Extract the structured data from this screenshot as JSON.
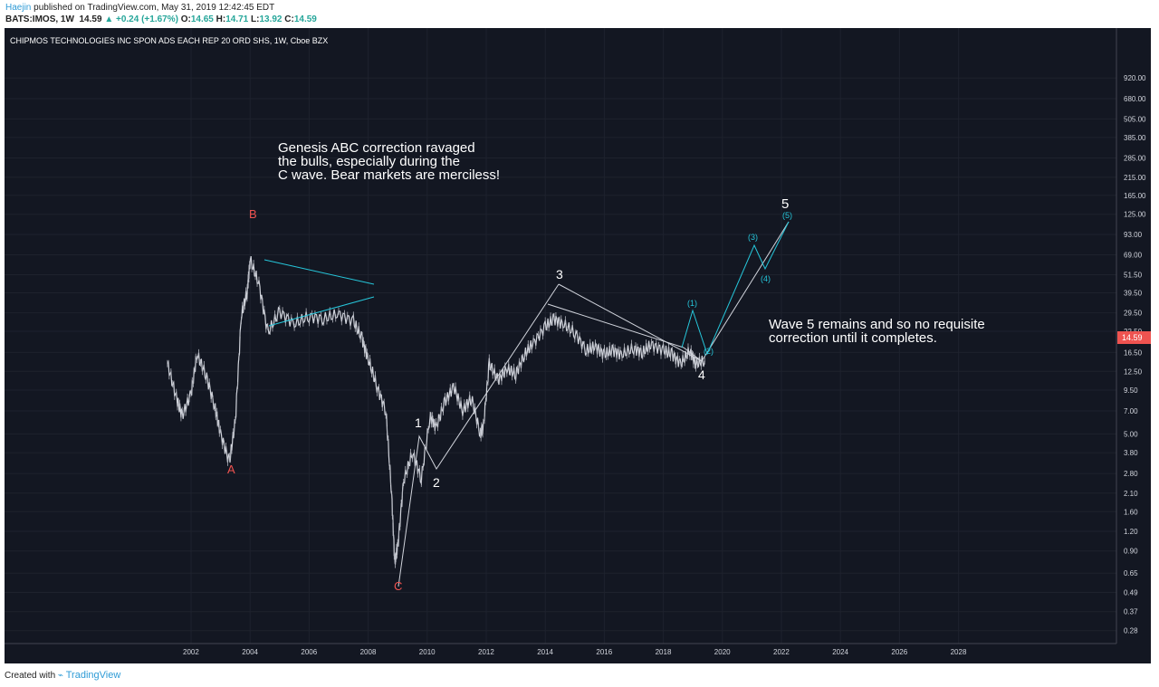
{
  "header": {
    "author": "Haejin",
    "published": "published on TradingView.com, May 31, 2019 12:42:45 EDT",
    "symbol": "BATS:IMOS, 1W",
    "price": "14.59",
    "change": "+0.24 (+1.67%)",
    "open_label": "O:",
    "open": "14.65",
    "high_label": "H:",
    "high": "14.71",
    "low_label": "L:",
    "low": "13.92",
    "close_label": "C:",
    "close": "14.59"
  },
  "chart_data": {
    "type": "line",
    "title": "CHIPMOS TECHNOLOGIES INC SPON ADS EACH REP 20 ORD SHS, 1W, Cboe BZX",
    "scale": "log",
    "grid": true,
    "y_ticks": [
      "920.00",
      "680.00",
      "505.00",
      "385.00",
      "285.00",
      "215.00",
      "165.00",
      "125.00",
      "93.00",
      "69.00",
      "51.50",
      "39.50",
      "29.50",
      "22.50",
      "16.50",
      "12.50",
      "9.50",
      "7.00",
      "5.00",
      "3.80",
      "2.80",
      "2.10",
      "1.60",
      "1.20",
      "0.90",
      "0.65",
      "0.49",
      "0.37",
      "0.28"
    ],
    "x_ticks": [
      "2002",
      "2004",
      "2006",
      "2008",
      "2010",
      "2012",
      "2014",
      "2016",
      "2018",
      "2020",
      "2022",
      "2024",
      "2026",
      "2028"
    ],
    "last_price": "14.59",
    "series": [
      {
        "x": [
          2001.2,
          2001.5,
          2001.7,
          2002.0,
          2002.2,
          2002.5,
          2002.8,
          2003.0,
          2003.3,
          2003.5,
          2003.7,
          2003.9,
          2004.0,
          2004.3,
          2004.6,
          2005.0,
          2005.5,
          2006.0,
          2006.5,
          2007.0,
          2007.5,
          2007.8,
          2008.0,
          2008.3,
          2008.6,
          2008.8,
          2008.9,
          2009.0,
          2009.2,
          2009.5,
          2009.8,
          2010.1,
          2010.3,
          2010.6,
          2010.9,
          2011.2,
          2011.5,
          2011.8,
          2011.9,
          2012.1,
          2012.4,
          2012.7,
          2013.0,
          2013.3,
          2013.6,
          2014.0,
          2014.3,
          2014.6,
          2015.0,
          2015.4,
          2015.7,
          2016.0,
          2016.3,
          2016.6,
          2017.0,
          2017.3,
          2017.6,
          2018.0,
          2018.3,
          2018.6,
          2018.9,
          2019.1,
          2019.4
        ],
        "y": [
          14.0,
          8.5,
          6.5,
          9.0,
          16.0,
          12.0,
          7.5,
          5.0,
          3.3,
          6.0,
          28.0,
          40.0,
          64.0,
          45.0,
          22.0,
          30.0,
          25.0,
          28.0,
          27.0,
          29.0,
          26.0,
          20.0,
          15.0,
          10.0,
          7.0,
          2.0,
          0.75,
          0.95,
          2.5,
          3.8,
          2.6,
          6.5,
          5.5,
          8.0,
          10.0,
          7.0,
          8.5,
          5.0,
          5.5,
          14.0,
          11.0,
          13.0,
          12.0,
          16.0,
          19.0,
          24.0,
          27.0,
          25.0,
          22.0,
          17.0,
          18.0,
          16.0,
          17.0,
          16.0,
          17.5,
          16.5,
          18.5,
          17.0,
          16.0,
          14.0,
          17.0,
          14.0,
          14.59
        ]
      }
    ],
    "wave_labels": [
      "A",
      "B",
      "C",
      "1",
      "2",
      "3",
      "4",
      "5",
      "(1)",
      "(2)",
      "(3)",
      "(4)",
      "(5)"
    ],
    "annotations": {
      "genesis": [
        "Genesis ABC correction ravaged",
        "the bulls, especially during the",
        "C wave. Bear markets are merciless!"
      ],
      "wave5": [
        "Wave 5 remains and so no requisite",
        "correction until it completes."
      ]
    },
    "colors": {
      "background": "#131722",
      "candles": "#d1d4dc",
      "abc_labels": "#ef5350",
      "triangle": "#26c6da",
      "price_badge": "#ef5350"
    }
  },
  "footer": {
    "created_with": "Created with",
    "brand": "TradingView"
  }
}
